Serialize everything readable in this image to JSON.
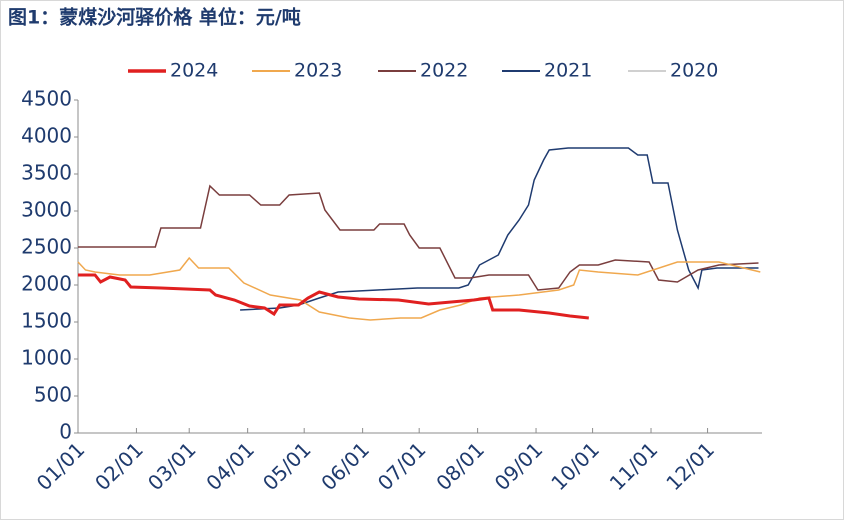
{
  "chart_data": {
    "type": "line",
    "title": "图1：蒙煤沙河驿价格  单位：元/吨",
    "xlim": [
      0,
      365
    ],
    "xticks": [
      {
        "value": 0,
        "label": "01/01"
      },
      {
        "value": 31,
        "label": "02/01"
      },
      {
        "value": 59,
        "label": "03/01"
      },
      {
        "value": 90,
        "label": "04/01"
      },
      {
        "value": 120,
        "label": "05/01"
      },
      {
        "value": 151,
        "label": "06/01"
      },
      {
        "value": 181,
        "label": "07/01"
      },
      {
        "value": 212,
        "label": "08/01"
      },
      {
        "value": 243,
        "label": "09/01"
      },
      {
        "value": 273,
        "label": "10/01"
      },
      {
        "value": 304,
        "label": "11/01"
      },
      {
        "value": 334,
        "label": "12/01"
      }
    ],
    "ylim": [
      0,
      4500
    ],
    "yticks": [
      0,
      500,
      1000,
      1500,
      2000,
      2500,
      3000,
      3500,
      4000,
      4500
    ],
    "legend": "top",
    "series": [
      {
        "name": "2024",
        "color": "#e02020",
        "width": 3,
        "x": [
          0,
          9,
          12,
          17,
          25,
          28,
          44,
          70,
          73,
          83,
          91,
          99,
          104,
          107,
          117,
          122,
          128,
          138,
          149,
          170,
          186,
          210,
          218,
          220,
          234,
          250,
          261,
          271
        ],
        "values": [
          2135,
          2135,
          2041,
          2108,
          2068,
          1973,
          1959,
          1932,
          1865,
          1797,
          1716,
          1689,
          1608,
          1730,
          1730,
          1824,
          1905,
          1838,
          1811,
          1797,
          1743,
          1797,
          1824,
          1662,
          1662,
          1622,
          1581,
          1554
        ]
      },
      {
        "name": "2023",
        "color": "#f0a84e",
        "width": 1.5,
        "x": [
          0,
          4,
          9,
          22,
          38,
          54,
          59,
          64,
          80,
          88,
          102,
          118,
          128,
          144,
          155,
          171,
          182,
          192,
          203,
          213,
          234,
          255,
          263,
          266,
          276,
          297,
          318,
          340,
          362
        ],
        "values": [
          2311,
          2203,
          2176,
          2135,
          2135,
          2203,
          2365,
          2230,
          2230,
          2027,
          1865,
          1797,
          1635,
          1554,
          1527,
          1554,
          1554,
          1662,
          1730,
          1824,
          1865,
          1932,
          2000,
          2203,
          2176,
          2135,
          2311,
          2311,
          2176
        ]
      },
      {
        "name": "2022",
        "color": "#7a3e3e",
        "width": 1.5,
        "x": [
          0,
          41,
          44,
          65,
          70,
          75,
          91,
          97,
          107,
          112,
          128,
          131,
          139,
          157,
          160,
          173,
          176,
          181,
          192,
          200,
          208,
          218,
          239,
          244,
          255,
          261,
          266,
          276,
          285,
          303,
          308,
          318,
          329,
          340,
          361
        ],
        "values": [
          2514,
          2514,
          2770,
          2770,
          3338,
          3216,
          3216,
          3081,
          3081,
          3216,
          3243,
          3014,
          2743,
          2743,
          2824,
          2824,
          2676,
          2500,
          2500,
          2095,
          2095,
          2135,
          2135,
          1932,
          1959,
          2176,
          2270,
          2270,
          2338,
          2311,
          2068,
          2041,
          2203,
          2270,
          2297
        ]
      },
      {
        "name": "2021",
        "color": "#1f3b70",
        "width": 1.5,
        "x": [
          86,
          107,
          117,
          128,
          138,
          159,
          180,
          202,
          207,
          213,
          223,
          228,
          234,
          239,
          242,
          247,
          250,
          260,
          292,
          297,
          302,
          305,
          313,
          318,
          324,
          329,
          331,
          339,
          361
        ],
        "values": [
          1662,
          1689,
          1730,
          1824,
          1905,
          1932,
          1959,
          1959,
          2000,
          2270,
          2405,
          2676,
          2878,
          3081,
          3419,
          3689,
          3824,
          3851,
          3851,
          3757,
          3757,
          3378,
          3378,
          2743,
          2203,
          1959,
          2203,
          2230,
          2230
        ]
      },
      {
        "name": "2020",
        "color": "#d0d0d0",
        "width": 1.5,
        "x": [],
        "values": []
      }
    ]
  }
}
